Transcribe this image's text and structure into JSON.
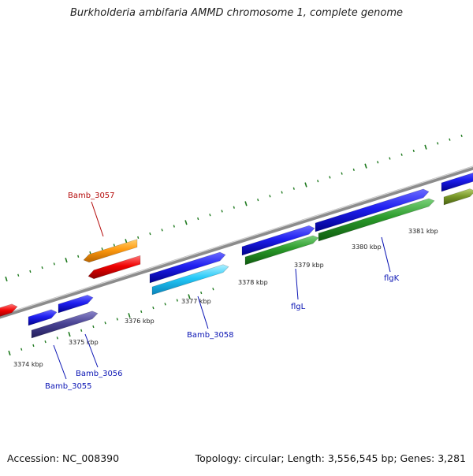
{
  "header": {
    "title": "Burkholderia ambifaria AMMD chromosome 1, complete genome"
  },
  "footer": {
    "accession": "Accession: NC_008390",
    "stats": "Topology: circular; Length: 3,556,545 bp; Genes: 3,281"
  },
  "colors": {
    "backbone": "#8c8c8c",
    "tick": "#1f7a1f",
    "gene_label": "#0a14b4",
    "highlight_label": "#b40a0a"
  },
  "ticks": {
    "upper_track": [
      {
        "label": "3376 kbp",
        "kbp": 3376
      },
      {
        "label": "3377 kbp",
        "kbp": 3377
      },
      {
        "label": "3378 kbp",
        "kbp": 3378
      },
      {
        "label": "3379 kbp",
        "kbp": 3379
      },
      {
        "label": "3380 kbp",
        "kbp": 3380
      },
      {
        "label": "3381 kbp",
        "kbp": 3381
      }
    ],
    "lower_track": [
      {
        "label": "3374 kbp",
        "kbp": 3374
      },
      {
        "label": "3375 kbp",
        "kbp": 3375
      }
    ]
  },
  "genes": [
    {
      "name": "Bamb_3055",
      "label": "Bamb_3055",
      "strand": "+",
      "color": "#1a1adf"
    },
    {
      "name": "Bamb_3056",
      "label": "Bamb_3056",
      "strand": "+",
      "color": "#1a1adf"
    },
    {
      "name": "Bamb_3057",
      "label": "Bamb_3057",
      "strand": "-",
      "color": "#e00000",
      "highlight": true
    },
    {
      "name": "Bamb_3058",
      "label": "Bamb_3058",
      "strand": "+",
      "color": "#1a1adf"
    },
    {
      "name": "flgL",
      "label": "flgL",
      "strand": "+",
      "color": "#1a1adf"
    },
    {
      "name": "flgK",
      "label": "flgK",
      "strand": "+",
      "color": "#1a1adf"
    }
  ]
}
